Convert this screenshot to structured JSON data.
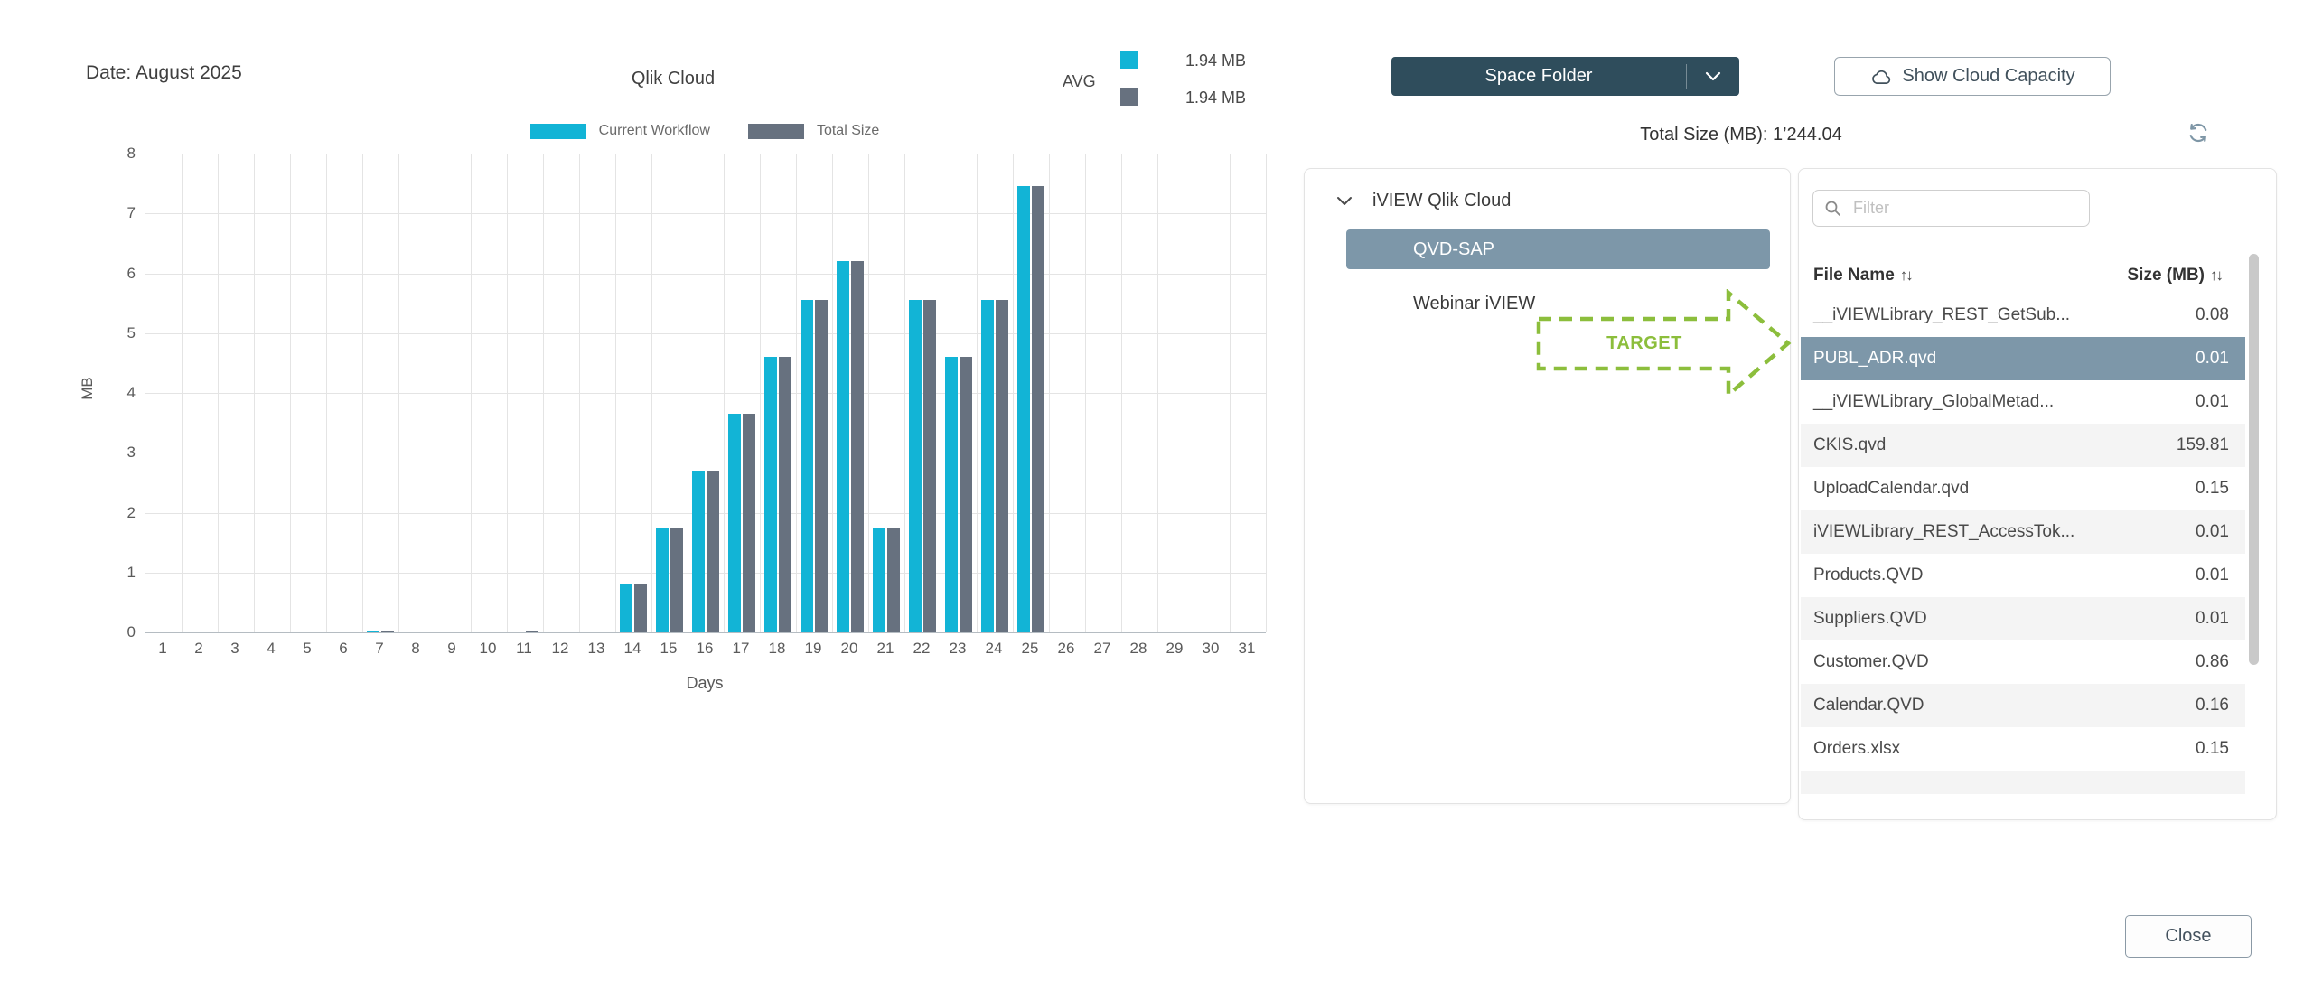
{
  "header": {
    "date_label": "Date: August 2025",
    "chart_title": "Qlik Cloud",
    "avg_label": "AVG",
    "avg_current": "1.94 MB",
    "avg_total": "1.94 MB"
  },
  "chart_data": {
    "type": "bar",
    "title": "Qlik Cloud",
    "xlabel": "Days",
    "ylabel": "MB",
    "ylim": [
      0,
      8
    ],
    "yticks": [
      0,
      1,
      2,
      3,
      4,
      5,
      6,
      7,
      8
    ],
    "grid": true,
    "legend_position": "top",
    "categories": [
      1,
      2,
      3,
      4,
      5,
      6,
      7,
      8,
      9,
      10,
      11,
      12,
      13,
      14,
      15,
      16,
      17,
      18,
      19,
      20,
      21,
      22,
      23,
      24,
      25,
      26,
      27,
      28,
      29,
      30,
      31
    ],
    "series": [
      {
        "name": "Current Workflow",
        "color": "#12b4d6",
        "values": [
          0,
          0,
          0,
          0,
          0,
          0,
          0.02,
          0,
          0,
          0,
          0,
          0,
          0,
          0.8,
          1.75,
          2.7,
          3.65,
          4.6,
          5.55,
          6.2,
          1.75,
          5.55,
          4.6,
          5.55,
          7.45,
          0,
          0,
          0,
          0,
          0,
          0
        ]
      },
      {
        "name": "Total Size",
        "color": "#67717f",
        "values": [
          0,
          0,
          0,
          0,
          0,
          0,
          0.02,
          0,
          0,
          0,
          0.01,
          0,
          0,
          0.8,
          1.75,
          2.7,
          3.65,
          4.6,
          5.55,
          6.2,
          1.75,
          5.55,
          4.6,
          5.55,
          7.45,
          0,
          0,
          0,
          0,
          0,
          0
        ]
      }
    ]
  },
  "toolbar": {
    "space_folder_label": "Space Folder",
    "show_cloud_capacity_label": "Show Cloud Capacity",
    "total_size_label": "Total Size (MB): 1’244.04"
  },
  "tree": {
    "root_label": "iVIEW Qlik Cloud",
    "items": [
      {
        "label": "QVD-SAP",
        "selected": true
      },
      {
        "label": "Webinar iVIEW",
        "selected": false
      }
    ]
  },
  "annotation": {
    "target_label": "TARGET",
    "color": "#8cbe3c"
  },
  "file_panel": {
    "filter_placeholder": "Filter",
    "columns": [
      {
        "label": "File Name",
        "sort": "↑↓"
      },
      {
        "label": "Size (MB)",
        "sort": "↑↓"
      }
    ],
    "rows": [
      {
        "name": "__iVIEWLibrary_REST_GetSub...",
        "size": "0.08",
        "selected": false
      },
      {
        "name": "PUBL_ADR.qvd",
        "size": "0.01",
        "selected": true
      },
      {
        "name": "__iVIEWLibrary_GlobalMetad...",
        "size": "0.01",
        "selected": false
      },
      {
        "name": "CKIS.qvd",
        "size": "159.81",
        "selected": false
      },
      {
        "name": "UploadCalendar.qvd",
        "size": "0.15",
        "selected": false
      },
      {
        "name": "iVIEWLibrary_REST_AccessTok...",
        "size": "0.01",
        "selected": false
      },
      {
        "name": "Products.QVD",
        "size": "0.01",
        "selected": false
      },
      {
        "name": "Suppliers.QVD",
        "size": "0.01",
        "selected": false
      },
      {
        "name": "Customer.QVD",
        "size": "0.86",
        "selected": false
      },
      {
        "name": "Calendar.QVD",
        "size": "0.16",
        "selected": false
      },
      {
        "name": "Orders.xlsx",
        "size": "0.15",
        "selected": false
      }
    ]
  },
  "footer": {
    "close_label": "Close"
  },
  "colors": {
    "accent_cyan": "#12b4d6",
    "bar_gray": "#67717f",
    "dark_button": "#2f4d5c",
    "selected_row": "#7d97a9",
    "target_green": "#8cbe3c"
  }
}
